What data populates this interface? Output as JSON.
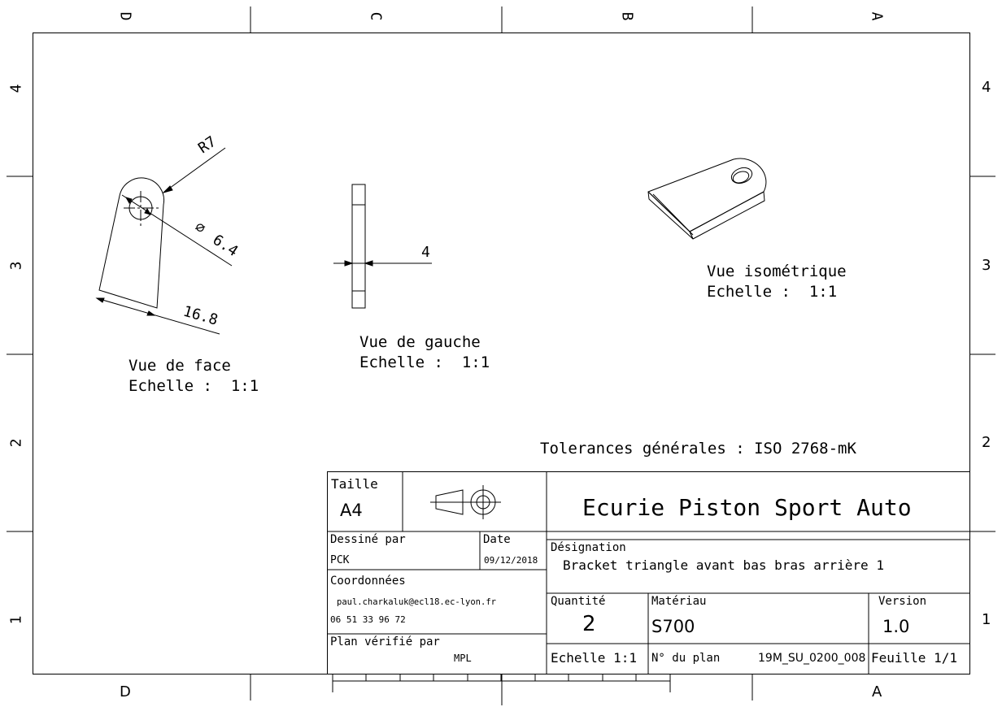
{
  "border": {
    "top_zones": [
      "D",
      "C",
      "B",
      "A"
    ],
    "bottom_zones": [
      "D",
      "A"
    ],
    "side_rows": [
      "4",
      "3",
      "2",
      "1"
    ]
  },
  "views": {
    "front": {
      "name": "Vue de face",
      "scale": "Echelle :  1:1",
      "dims": {
        "radius": "R7",
        "hole": "6.4",
        "hole_symbol": "∅",
        "length": "16.8"
      }
    },
    "left": {
      "name": "Vue de gauche",
      "scale": "Echelle :  1:1",
      "dims": {
        "thickness": "4"
      }
    },
    "iso": {
      "name": "Vue isométrique",
      "scale": "Echelle :  1:1"
    }
  },
  "tolerances": "Tolerances générales : ISO 2768-mK",
  "title_block": {
    "size_label": "Taille",
    "size_value": "A4",
    "projection_symbol": "first-angle-projection-icon",
    "company": "Ecurie Piston Sport Auto",
    "drawn_by_label": "Dessiné par",
    "drawn_by": "PCK",
    "date_label": "Date",
    "date": "09/12/2018",
    "designation_label": "Désignation",
    "designation": "Bracket triangle avant bas bras arrière 1",
    "contact_label": "Coordonnées",
    "email": "paul.charkaluk@ecl18.ec-lyon.fr",
    "phone": "06 51 33 96 72",
    "quantity_label": "Quantité",
    "quantity": "2",
    "material_label": "Matériau",
    "material": "S700",
    "version_label": "Version",
    "version": "1.0",
    "checked_by_label": "Plan vérifié par",
    "checked_by": "MPL",
    "scale": "Echelle 1:1",
    "plan_no_label": "N° du plan",
    "plan_no": "19M_SU_0200_008",
    "sheet": "Feuille 1/1"
  }
}
